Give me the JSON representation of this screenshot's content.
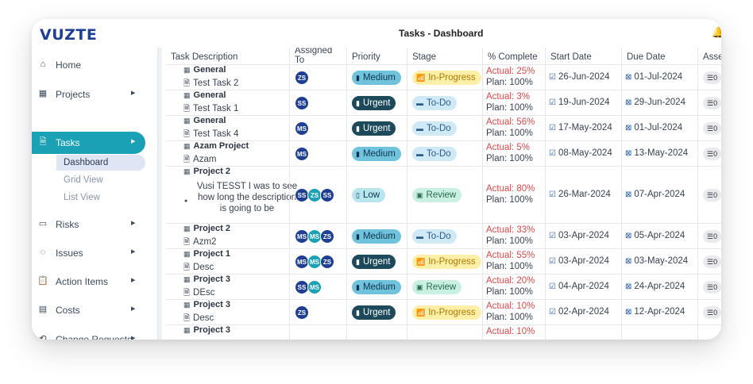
{
  "app": {
    "logo": "VUZTE",
    "page_title": "Tasks - Dashboard",
    "top_icon": "bell-icon"
  },
  "sidebar": {
    "items": [
      {
        "label": "Home",
        "icon": "home-icon",
        "arrow": false
      },
      {
        "label": "Projects",
        "icon": "grid-icon",
        "arrow": true
      },
      {
        "label": "Tasks",
        "icon": "document-icon",
        "arrow": true,
        "active": true
      },
      {
        "label": "Risks",
        "icon": "folder-icon",
        "arrow": true
      },
      {
        "label": "Issues",
        "icon": "issue-icon",
        "arrow": true
      },
      {
        "label": "Action Items",
        "icon": "clipboard-icon",
        "arrow": true
      },
      {
        "label": "Costs",
        "icon": "money-icon",
        "arrow": true
      },
      {
        "label": "Change Requests",
        "icon": "change-icon",
        "arrow": true
      }
    ],
    "sub_items": [
      {
        "label": "Dashboard",
        "active": true
      },
      {
        "label": "Grid View"
      },
      {
        "label": "List View"
      }
    ]
  },
  "table": {
    "headers": [
      "Task Description",
      "Assigned To",
      "Priority",
      "Stage",
      "% Complete",
      "Start Date",
      "Due Date",
      "Asse"
    ],
    "rows": [
      {
        "project": "General",
        "task": "Test Task 2",
        "assigned": [
          "ZS"
        ],
        "priority": "Medium",
        "stage": "In-Progress",
        "actual": "Actual:  25%",
        "plan": "Plan:  100%",
        "start": "26-Jun-2024",
        "due": "01-Jul-2024",
        "asset": "0"
      },
      {
        "project": "General",
        "task": "Test Task 1",
        "assigned": [
          "SS"
        ],
        "priority": "Urgent",
        "stage": "To-Do",
        "actual": "Actual:  3%",
        "plan": "Plan:  100%",
        "start": "19-Jun-2024",
        "due": "29-Jun-2024",
        "asset": "0"
      },
      {
        "project": "General",
        "task": "Test Task 4",
        "assigned": [
          "MS"
        ],
        "priority": "Urgent",
        "stage": "To-Do",
        "actual": "Actual:  56%",
        "plan": "Plan:  100%",
        "start": "17-May-2024",
        "due": "01-Jul-2024",
        "asset": "0"
      },
      {
        "project": "Azam Project",
        "task": "Azam",
        "assigned": [
          "MS"
        ],
        "priority": "Medium",
        "stage": "To-Do",
        "actual": "Actual:  5%",
        "plan": "Plan:  100%",
        "start": "08-May-2024",
        "due": "13-May-2024",
        "asset": "0"
      },
      {
        "project": "Project 2",
        "task": "Vusi TESST I was to see how long the description is going to be",
        "assigned": [
          "SS",
          "ZS",
          "SS"
        ],
        "priority": "Low",
        "stage": "Review",
        "actual": "Actual:  80%",
        "plan": "Plan:  100%",
        "start": "26-Mar-2024",
        "due": "07-Apr-2024",
        "asset": "0"
      },
      {
        "project": "Project 2",
        "task": "Azm2",
        "assigned": [
          "MS",
          "MS",
          "ZS"
        ],
        "priority": "Medium",
        "stage": "To-Do",
        "actual": "Actual:  33%",
        "plan": "Plan:  100%",
        "start": "03-Apr-2024",
        "due": "05-Apr-2024",
        "asset": "0"
      },
      {
        "project": "Project 1",
        "task": "Desc",
        "assigned": [
          "MS",
          "MS",
          "ZS"
        ],
        "priority": "Urgent",
        "stage": "In-Progress",
        "actual": "Actual:  55%",
        "plan": "Plan:  100%",
        "start": "03-Apr-2024",
        "due": "03-May-2024",
        "asset": "0"
      },
      {
        "project": "Project 3",
        "task": "DEsc",
        "assigned": [
          "SS",
          "MS"
        ],
        "priority": "Medium",
        "stage": "Review",
        "actual": "Actual:  20%",
        "plan": "Plan:  100%",
        "start": "04-Apr-2024",
        "due": "24-Apr-2024",
        "asset": "0"
      },
      {
        "project": "Project 3",
        "task": "Desc",
        "assigned": [
          "ZS"
        ],
        "priority": "Urgent",
        "stage": "In-Progress",
        "actual": "Actual:  10%",
        "plan": "Plan:  100%",
        "start": "02-Apr-2024",
        "due": "12-Apr-2024",
        "asset": "0"
      }
    ],
    "next_row_partial": {
      "project": "Project 3",
      "actual": "Actual:  10%"
    }
  },
  "colors": {
    "avatar": {
      "ZS": "#1f3f94",
      "SS": "#1f3f94",
      "MS": "#1f3f94",
      "ZS2": "#1aa1b5",
      "MS2": "#1aa1b5"
    },
    "priority": {
      "Medium": {
        "bg": "#6fc3dd",
        "fg": "#10334d"
      },
      "Urgent": {
        "bg": "#1d4a5a",
        "fg": "#ffffff"
      },
      "Low": {
        "bg": "#b7e6ef",
        "fg": "#10334d"
      }
    },
    "stage": {
      "In-Progress": {
        "bg": "#fdefa8",
        "fg": "#b07a00"
      },
      "To-Do": {
        "bg": "#cfe9f7",
        "fg": "#2b5c8a"
      },
      "Review": {
        "bg": "#c9f0e1",
        "fg": "#2a6a52"
      }
    }
  }
}
